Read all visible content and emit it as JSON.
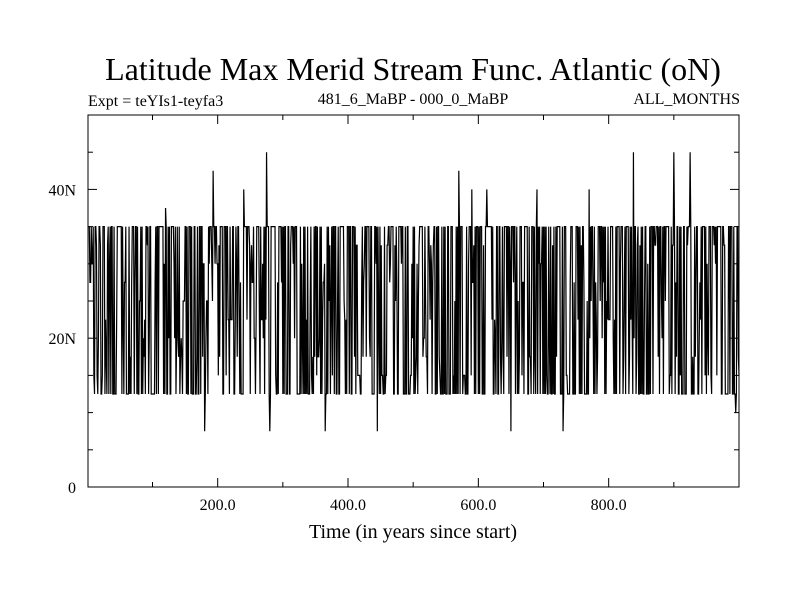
{
  "chart_data": {
    "type": "line",
    "title": "Latitude Max Merid Stream Func. Atlantic (oN)",
    "subtitle_left": "Expt = teYIs1-teyfa3",
    "subtitle_center": "481_6_MaBP - 000_0_MaBP",
    "subtitle_right": "ALL_MONTHS",
    "xlabel": "Time (in years since start)",
    "ylabel": "",
    "xlim": [
      1,
      1000
    ],
    "ylim": [
      0,
      50
    ],
    "x_ticks": [
      {
        "value": 200,
        "label": "200.0"
      },
      {
        "value": 400,
        "label": "400.0"
      },
      {
        "value": 600,
        "label": "600.0"
      },
      {
        "value": 800,
        "label": "800.0"
      }
    ],
    "y_ticks": [
      {
        "value": 0,
        "label": "0"
      },
      {
        "value": 20,
        "label": "20N"
      },
      {
        "value": 40,
        "label": "40N"
      }
    ],
    "levels": [
      7.5,
      10.0,
      12.5,
      15.0,
      17.5,
      20.0,
      22.5,
      25.0,
      27.5,
      30.0,
      32.5,
      35.0,
      37.5,
      42.5,
      45.0
    ],
    "dominant_range": [
      12.5,
      35.0
    ],
    "series_samples": 1000,
    "spikes": [
      {
        "x": 120,
        "y": 37.5
      },
      {
        "x": 180,
        "y": 7.5
      },
      {
        "x": 193,
        "y": 42.5
      },
      {
        "x": 240,
        "y": 40.0
      },
      {
        "x": 275,
        "y": 45.0
      },
      {
        "x": 280,
        "y": 7.5
      },
      {
        "x": 365,
        "y": 7.5
      },
      {
        "x": 445,
        "y": 7.5
      },
      {
        "x": 570,
        "y": 42.5
      },
      {
        "x": 590,
        "y": 40.0
      },
      {
        "x": 613,
        "y": 40.0
      },
      {
        "x": 650,
        "y": 7.5
      },
      {
        "x": 690,
        "y": 40.0
      },
      {
        "x": 730,
        "y": 7.5
      },
      {
        "x": 770,
        "y": 40.0
      },
      {
        "x": 838,
        "y": 45.0
      },
      {
        "x": 900,
        "y": 45.0
      },
      {
        "x": 925,
        "y": 45.0
      },
      {
        "x": 995,
        "y": 10.0
      }
    ],
    "color": "#000000"
  }
}
